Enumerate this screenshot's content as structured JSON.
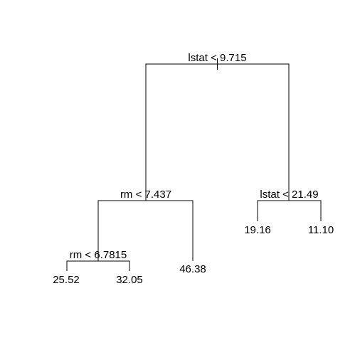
{
  "tree": {
    "splits": [
      {
        "id": "root",
        "label": "lstat < 9.715"
      },
      {
        "id": "left",
        "label": "rm < 7.437"
      },
      {
        "id": "right",
        "label": "lstat < 21.49"
      },
      {
        "id": "left-left",
        "label": "rm < 6.7815"
      }
    ],
    "leaves": [
      {
        "id": "leaf-1",
        "value": "25.52"
      },
      {
        "id": "leaf-2",
        "value": "32.05"
      },
      {
        "id": "leaf-3",
        "value": "46.38"
      },
      {
        "id": "leaf-4",
        "value": "19.16"
      },
      {
        "id": "leaf-5",
        "value": "11.10"
      }
    ]
  }
}
